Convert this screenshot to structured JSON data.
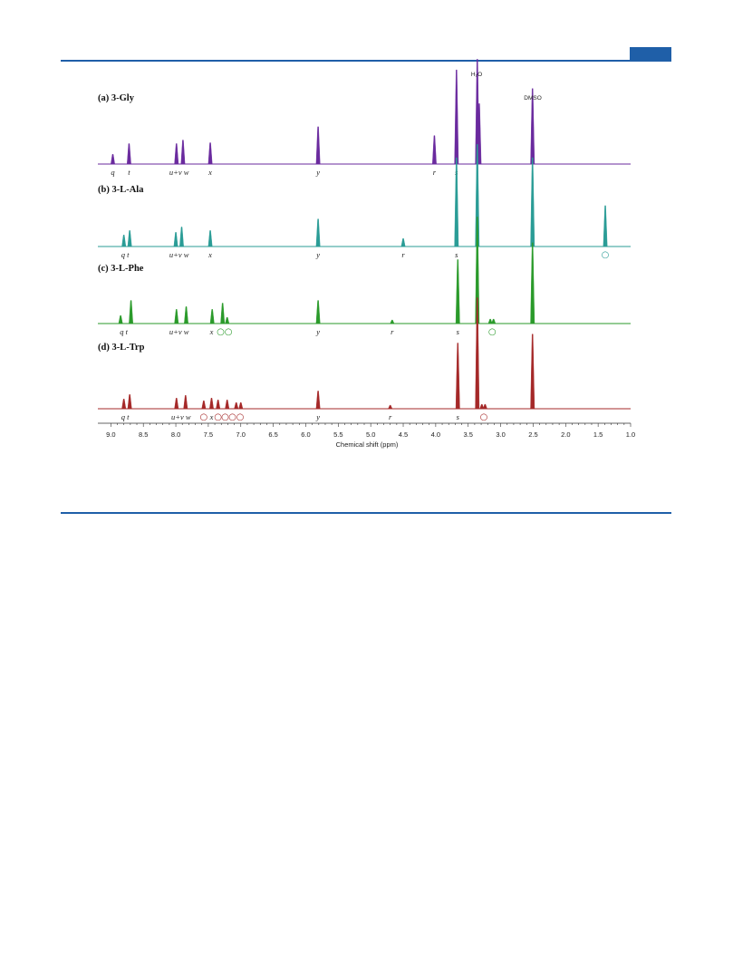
{
  "chart_data": {
    "type": "line",
    "xlabel": "Chemical shift (ppm)",
    "xlim": [
      9.2,
      1.0
    ],
    "x_reversed": true,
    "x_ticks": [
      "9.0",
      "8.5",
      "8.0",
      "7.5",
      "7.0",
      "6.5",
      "6.0",
      "5.5",
      "5.0",
      "4.5",
      "4.0",
      "3.5",
      "3.0",
      "2.5",
      "2.0",
      "1.5",
      "1.0"
    ],
    "solvent_labels": {
      "water": "H₂O",
      "dmso": "DMSO"
    },
    "marker_symbol": "○",
    "series": [
      {
        "name": "(a) 3-Gly",
        "color": "#6a2a9e",
        "peaks": [
          {
            "ppm": 8.97,
            "h": 0.11
          },
          {
            "ppm": 8.72,
            "h": 0.23
          },
          {
            "ppm": 7.99,
            "h": 0.23
          },
          {
            "ppm": 7.89,
            "h": 0.27
          },
          {
            "ppm": 7.47,
            "h": 0.24
          },
          {
            "ppm": 5.81,
            "h": 0.42
          },
          {
            "ppm": 4.02,
            "h": 0.32
          },
          {
            "ppm": 3.68,
            "h": 1.06
          },
          {
            "ppm": 3.36,
            "h": 1.18
          },
          {
            "ppm": 3.33,
            "h": 0.68
          },
          {
            "ppm": 2.51,
            "h": 0.85
          }
        ],
        "labels": [
          {
            "ppm": 8.97,
            "text": "q"
          },
          {
            "ppm": 8.72,
            "text": "t"
          },
          {
            "ppm": 7.95,
            "text": "u+v w"
          },
          {
            "ppm": 7.47,
            "text": "x"
          },
          {
            "ppm": 5.81,
            "text": "y"
          },
          {
            "ppm": 4.02,
            "text": "r"
          },
          {
            "ppm": 3.68,
            "text": "s"
          }
        ],
        "markers": []
      },
      {
        "name": "(b) 3-L-Ala",
        "color": "#2a9c96",
        "peaks": [
          {
            "ppm": 8.8,
            "h": 0.13
          },
          {
            "ppm": 8.71,
            "h": 0.18
          },
          {
            "ppm": 8.0,
            "h": 0.16
          },
          {
            "ppm": 7.91,
            "h": 0.22
          },
          {
            "ppm": 7.47,
            "h": 0.18
          },
          {
            "ppm": 5.81,
            "h": 0.31
          },
          {
            "ppm": 4.5,
            "h": 0.09
          },
          {
            "ppm": 3.68,
            "h": 1.0
          },
          {
            "ppm": 3.36,
            "h": 1.15
          },
          {
            "ppm": 2.51,
            "h": 1.0
          },
          {
            "ppm": 1.39,
            "h": 0.46
          }
        ],
        "labels": [
          {
            "ppm": 8.78,
            "text": "q t"
          },
          {
            "ppm": 7.95,
            "text": "u+v w"
          },
          {
            "ppm": 7.47,
            "text": "x"
          },
          {
            "ppm": 5.81,
            "text": "y"
          },
          {
            "ppm": 4.5,
            "text": "r"
          },
          {
            "ppm": 3.68,
            "text": "s"
          }
        ],
        "markers": [
          1.39
        ]
      },
      {
        "name": "(c) 3-L-Phe",
        "color": "#2a9a2a",
        "peaks": [
          {
            "ppm": 8.85,
            "h": 0.09
          },
          {
            "ppm": 8.69,
            "h": 0.26
          },
          {
            "ppm": 7.99,
            "h": 0.16
          },
          {
            "ppm": 7.84,
            "h": 0.19
          },
          {
            "ppm": 7.44,
            "h": 0.16
          },
          {
            "ppm": 7.28,
            "h": 0.23
          },
          {
            "ppm": 7.21,
            "h": 0.07
          },
          {
            "ppm": 5.81,
            "h": 0.26
          },
          {
            "ppm": 4.67,
            "h": 0.04
          },
          {
            "ppm": 3.66,
            "h": 0.72
          },
          {
            "ppm": 3.36,
            "h": 1.2
          },
          {
            "ppm": 3.16,
            "h": 0.05
          },
          {
            "ppm": 3.11,
            "h": 0.05
          },
          {
            "ppm": 2.51,
            "h": 0.91
          }
        ],
        "labels": [
          {
            "ppm": 8.8,
            "text": "q t"
          },
          {
            "ppm": 7.95,
            "text": "u+v w"
          },
          {
            "ppm": 7.45,
            "text": "x"
          },
          {
            "ppm": 5.81,
            "text": "y"
          },
          {
            "ppm": 4.67,
            "text": "r"
          },
          {
            "ppm": 3.66,
            "text": "s"
          }
        ],
        "markers": [
          7.31,
          7.19,
          3.13
        ]
      },
      {
        "name": "(d) 3-L-Trp",
        "color": "#a52828",
        "peaks": [
          {
            "ppm": 8.8,
            "h": 0.11
          },
          {
            "ppm": 8.71,
            "h": 0.16
          },
          {
            "ppm": 7.99,
            "h": 0.12
          },
          {
            "ppm": 7.85,
            "h": 0.15
          },
          {
            "ppm": 7.57,
            "h": 0.09
          },
          {
            "ppm": 7.45,
            "h": 0.12
          },
          {
            "ppm": 7.35,
            "h": 0.1
          },
          {
            "ppm": 7.21,
            "h": 0.1
          },
          {
            "ppm": 7.07,
            "h": 0.07
          },
          {
            "ppm": 7.0,
            "h": 0.07
          },
          {
            "ppm": 5.81,
            "h": 0.2
          },
          {
            "ppm": 4.7,
            "h": 0.04
          },
          {
            "ppm": 3.66,
            "h": 0.74
          },
          {
            "ppm": 3.36,
            "h": 1.25
          },
          {
            "ppm": 3.29,
            "h": 0.05
          },
          {
            "ppm": 3.24,
            "h": 0.05
          },
          {
            "ppm": 2.51,
            "h": 0.84
          }
        ],
        "labels": [
          {
            "ppm": 8.78,
            "text": "q t"
          },
          {
            "ppm": 7.92,
            "text": "u+v w"
          },
          {
            "ppm": 7.45,
            "text": "x"
          },
          {
            "ppm": 5.81,
            "text": "y"
          },
          {
            "ppm": 4.7,
            "text": "r"
          },
          {
            "ppm": 3.66,
            "text": "s"
          }
        ],
        "markers": [
          7.57,
          7.35,
          7.24,
          7.13,
          7.01,
          3.26
        ]
      }
    ]
  }
}
